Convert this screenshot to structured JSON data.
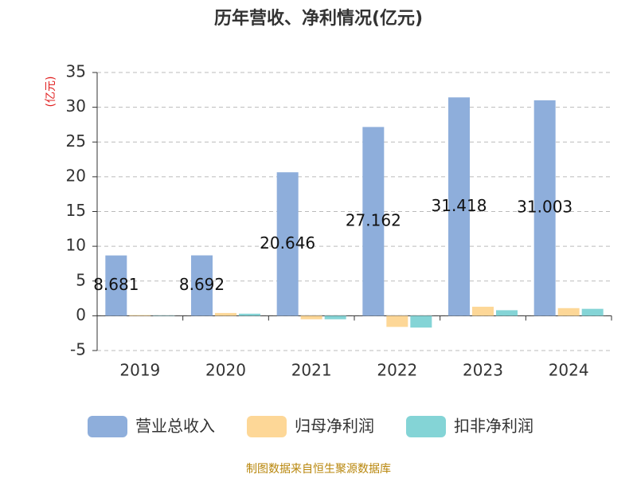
{
  "chart_data": {
    "type": "bar",
    "title": "历年营收、净利情况(亿元)",
    "ylabel": "(亿元)",
    "source": "制图数据来自恒生聚源数据库",
    "categories": [
      "2019",
      "2020",
      "2021",
      "2022",
      "2023",
      "2024"
    ],
    "series": [
      {
        "name": "营业总收入",
        "color": "#8eaedb",
        "values": [
          8.681,
          8.692,
          20.646,
          27.162,
          31.418,
          31.003
        ],
        "labels": true
      },
      {
        "name": "归母净利润",
        "color": "#fdd797",
        "values": [
          0.1,
          0.4,
          -0.5,
          -1.6,
          1.3,
          1.1
        ]
      },
      {
        "name": "扣非净利润",
        "color": "#84d4d6",
        "values": [
          0.05,
          0.3,
          -0.5,
          -1.7,
          0.8,
          1.0
        ]
      }
    ],
    "ylim": [
      -5,
      35
    ],
    "yticks": [
      -5,
      0,
      5,
      10,
      15,
      20,
      25,
      30,
      35
    ],
    "grid": true
  }
}
